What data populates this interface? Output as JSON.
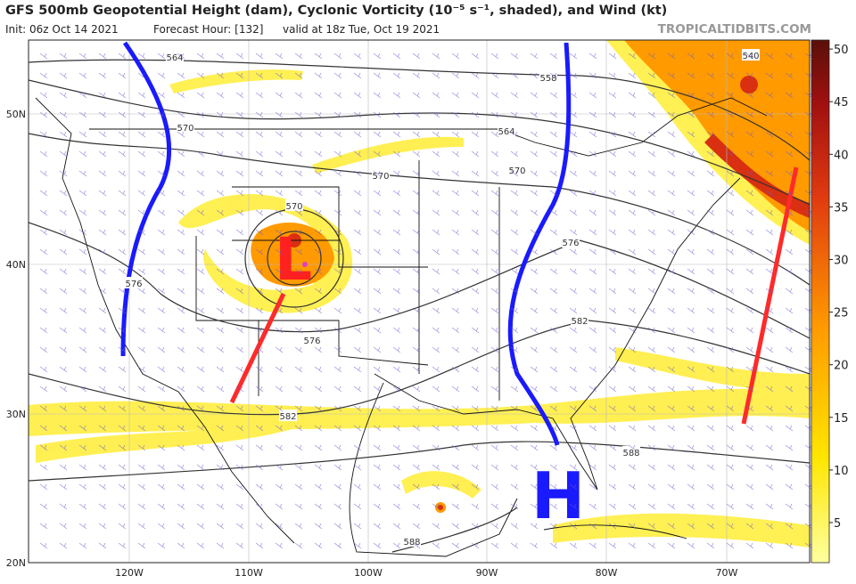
{
  "header": {
    "title": "GFS 500mb Geopotential Height (dam), Cyclonic Vorticity (10⁻⁵ s⁻¹, shaded), and Wind (kt)",
    "init": "Init: 06z Oct 14 2021",
    "forecast_hour": "Forecast Hour: [132]",
    "valid": "valid at 18z Tue, Oct 19 2021",
    "credit": "TROPICALTIDBITS.COM"
  },
  "colorbar": {
    "ticks": [
      5,
      10,
      15,
      20,
      25,
      30,
      35,
      40,
      45,
      50
    ]
  },
  "lat_labels": [
    "50N",
    "40N",
    "30N",
    "20N"
  ],
  "lon_labels": [
    "120W",
    "110W",
    "100W",
    "90W",
    "80W",
    "70W"
  ],
  "contour_labels": [
    564,
    558,
    540,
    570,
    564,
    570,
    570,
    570,
    576,
    576,
    576,
    582,
    582,
    588,
    588
  ],
  "annotations": {
    "low": "L",
    "high": "H"
  }
}
